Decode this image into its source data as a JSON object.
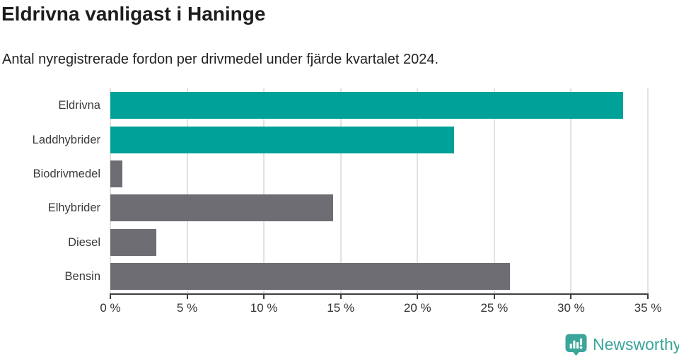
{
  "chart": {
    "title": "Eldrivna vanligast i Haninge",
    "subtitle": "Antal nyregistrerade fordon per drivmedel under fjärde kvartalet 2024."
  },
  "chart_data": {
    "type": "bar",
    "orientation": "horizontal",
    "title": "Eldrivna vanligast i Haninge",
    "subtitle": "Antal nyregistrerade fordon per drivmedel under fjärde kvartalet 2024.",
    "categories": [
      "Eldrivna",
      "Laddhybrider",
      "Biodrivmedel",
      "Elhybrider",
      "Diesel",
      "Bensin"
    ],
    "values": [
      33.4,
      22.4,
      0.8,
      14.5,
      3.0,
      26.0
    ],
    "unit": "%",
    "bar_colors": [
      "#00a198",
      "#00a198",
      "#6d6d73",
      "#6d6d73",
      "#6d6d73",
      "#6d6d73"
    ],
    "xlim": [
      0,
      35
    ],
    "tick_values": [
      0,
      5,
      10,
      15,
      20,
      25,
      30,
      35
    ],
    "x_tick_labels": [
      "0 %",
      "5 %",
      "10 %",
      "15 %",
      "20 %",
      "25 %",
      "30 %",
      "35 %"
    ],
    "grid": "vertical-only",
    "legend": "none"
  },
  "footer": {
    "brand": "Newsworthy"
  },
  "colors": {
    "accent": "#00a198",
    "muted_bar": "#6d6d73",
    "grid": "#e2e2e2",
    "axis": "#3f3f3f",
    "logo": "#3ba59a"
  }
}
